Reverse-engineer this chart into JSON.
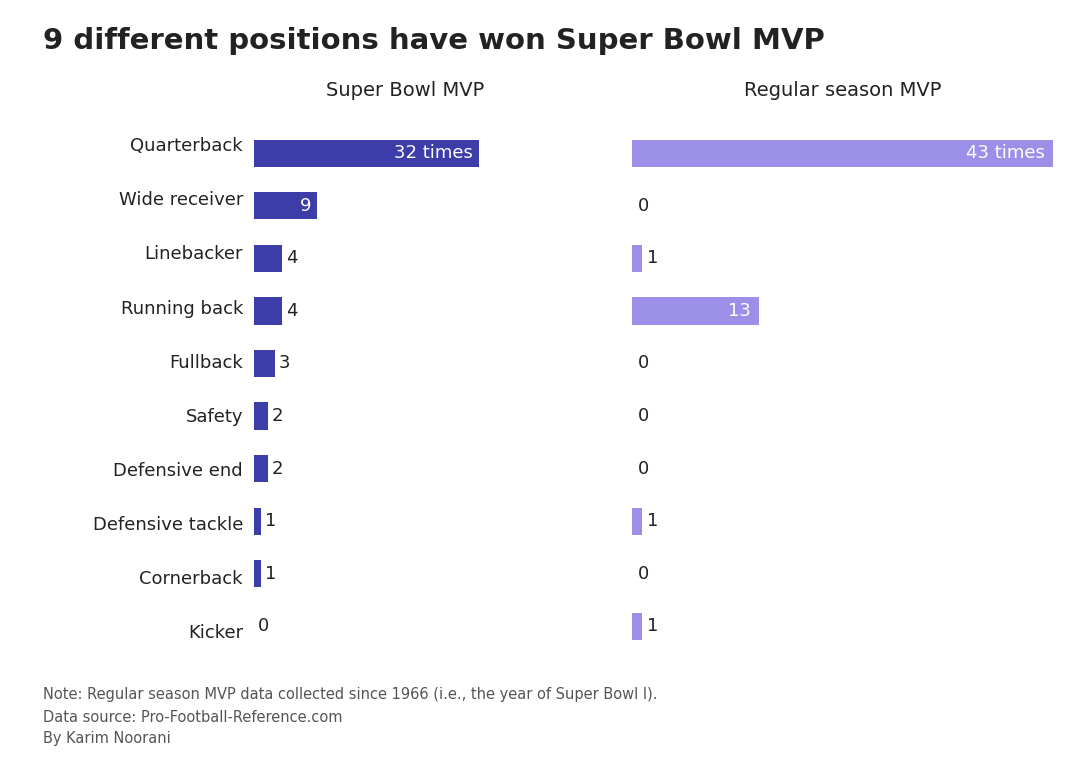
{
  "title": "9 different positions have won Super Bowl MVP",
  "positions": [
    "Quarterback",
    "Wide receiver",
    "Linebacker",
    "Running back",
    "Fullback",
    "Safety",
    "Defensive end",
    "Defensive tackle",
    "Cornerback",
    "Kicker"
  ],
  "super_bowl_mvp": [
    32,
    9,
    4,
    4,
    3,
    2,
    2,
    1,
    1,
    0
  ],
  "regular_season_mvp": [
    43,
    0,
    1,
    13,
    0,
    0,
    0,
    1,
    0,
    1
  ],
  "sb_color": "#3D3DAA",
  "rs_color": "#9B8FE8",
  "sb_header": "Super Bowl MVP",
  "rs_header": "Regular season MVP",
  "note_line1": "Note: Regular season MVP data collected since 1966 (i.e., the year of Super Bowl I).",
  "note_line2": "Data source: Pro-Football-Reference.com",
  "note_line3": "By Karim Noorani",
  "background_color": "#FFFFFF",
  "text_color": "#222222",
  "note_color": "#555555",
  "sb_max": 43,
  "rs_max": 43,
  "sb_label_threshold": 9,
  "rs_label_threshold": 9
}
